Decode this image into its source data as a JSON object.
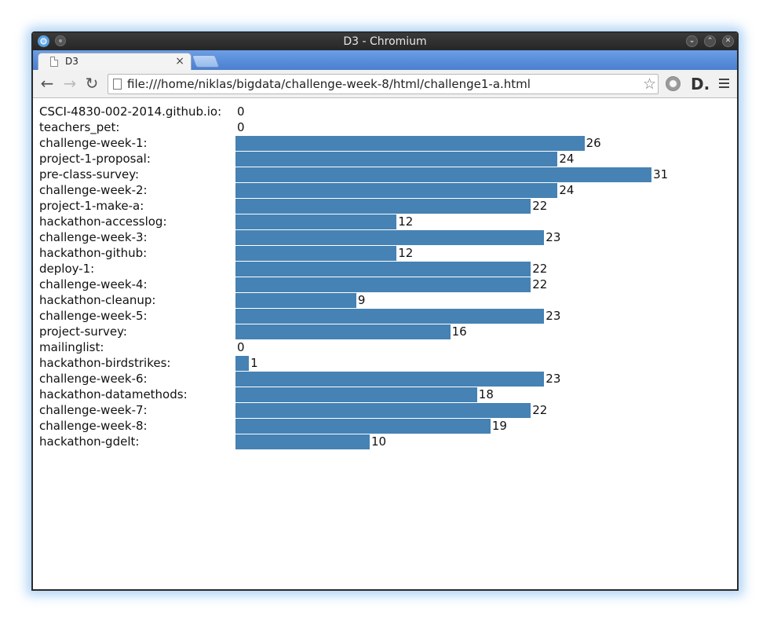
{
  "window": {
    "title": "D3 - Chromium"
  },
  "tab": {
    "label": "D3",
    "close": "×"
  },
  "toolbar": {
    "url": "file:///home/niklas/bigdata/challenge-week-8/html/challenge1-a.html",
    "extension_label": "D."
  },
  "colors": {
    "bar": "#4682b4"
  },
  "chart_data": {
    "type": "bar",
    "orientation": "horizontal",
    "categories": [
      "CSCI-4830-002-2014.github.io",
      "teachers_pet",
      "challenge-week-1",
      "project-1-proposal",
      "pre-class-survey",
      "challenge-week-2",
      "project-1-make-a",
      "hackathon-accesslog",
      "challenge-week-3",
      "hackathon-github",
      "deploy-1",
      "challenge-week-4",
      "hackathon-cleanup",
      "challenge-week-5",
      "project-survey",
      "mailinglist",
      "hackathon-birdstrikes",
      "challenge-week-6",
      "hackathon-datamethods",
      "challenge-week-7",
      "challenge-week-8",
      "hackathon-gdelt"
    ],
    "values": [
      0,
      0,
      26,
      24,
      31,
      24,
      22,
      12,
      23,
      12,
      22,
      22,
      9,
      23,
      16,
      0,
      1,
      23,
      18,
      22,
      19,
      10
    ],
    "label_suffix": ":",
    "xlim": [
      0,
      31
    ]
  }
}
